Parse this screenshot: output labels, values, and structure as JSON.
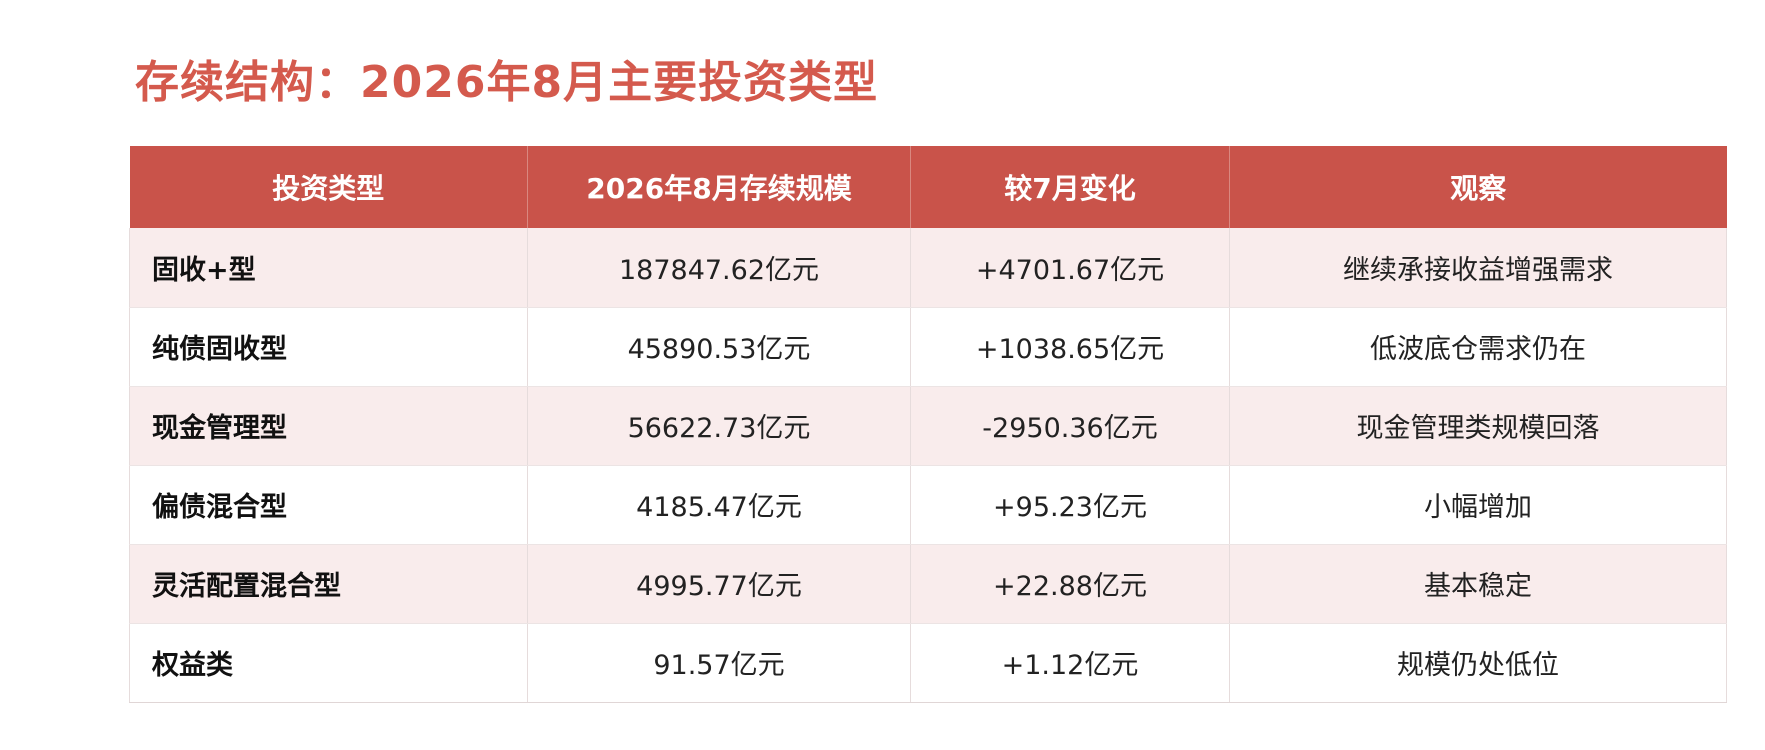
{
  "title": "存续结构：2026年8月主要投资类型",
  "table": {
    "headers": [
      "投资类型",
      "2026年8月存续规模",
      "较7月变化",
      "观察"
    ],
    "rows": [
      [
        "固收+型",
        "187847.62亿元",
        "+4701.67亿元",
        "继续承接收益增强需求"
      ],
      [
        "纯债固收型",
        "45890.53亿元",
        "+1038.65亿元",
        "低波底仓需求仍在"
      ],
      [
        "现金管理型",
        "56622.73亿元",
        "-2950.36亿元",
        "现金管理类规模回落"
      ],
      [
        "偏债混合型",
        "4185.47亿元",
        "+95.23亿元",
        "小幅增加"
      ],
      [
        "灵活配置混合型",
        "4995.77亿元",
        "+22.88亿元",
        "基本稳定"
      ],
      [
        "权益类",
        "91.57亿元",
        "+1.12亿元",
        "规模仍处低位"
      ]
    ]
  },
  "colors": {
    "title": "#d45a4d",
    "header_bg": "#c9534a",
    "row_alt_bg": "#f9ecec"
  }
}
